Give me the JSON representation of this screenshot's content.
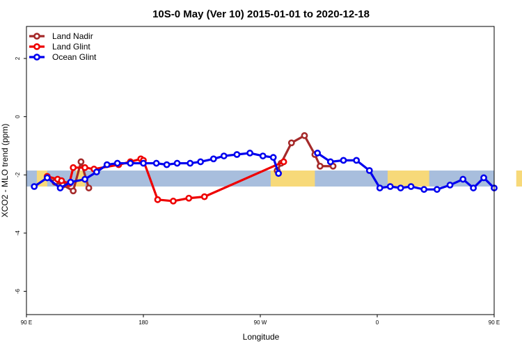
{
  "chart_data": {
    "type": "line",
    "title": "10S-0 May (Ver 10)   2015-01-01 to 2020-12-18",
    "xlabel": "Longitude",
    "ylabel": "XCO2 - MLO trend (ppm)",
    "xlim": [
      90,
      450
    ],
    "ylim": [
      -6.8,
      3.1
    ],
    "x_ticks": [
      90,
      180,
      270,
      360,
      450
    ],
    "x_tick_labels": [
      "90 E",
      "180",
      "90 W",
      "0",
      "90 E"
    ],
    "y_ticks": [
      2,
      0,
      -2,
      -4,
      -6
    ],
    "y_tick_labels": [
      "2",
      "0",
      "-2",
      "-4",
      "-6"
    ],
    "legend_position": "top-left",
    "map_band": {
      "lat_label": "10S-0",
      "value_range": [
        -2.4,
        -1.85
      ],
      "ocean_color": "#a8bedd",
      "land_color": "#f7d979",
      "land_segments": [
        [
          98,
          106
        ],
        [
          128,
          135
        ],
        [
          278,
          312
        ],
        [
          368,
          400
        ],
        [
          467,
          473
        ],
        [
          492,
          500
        ]
      ]
    },
    "series": [
      {
        "name": "Land Nadir",
        "color": "#a52a2a",
        "x": [
          106,
          112,
          118,
          126,
          132,
          138,
          283,
          286,
          294,
          304,
          312,
          316,
          326
        ],
        "y": [
          -2.1,
          -2.25,
          -2.35,
          -2.55,
          -1.55,
          -2.45,
          -1.85,
          -1.6,
          -0.9,
          -0.65,
          -1.3,
          -1.7,
          -1.7
        ],
        "segment_breaks": [
          6
        ]
      },
      {
        "name": "Land Glint",
        "color": "#ee0000",
        "x": [
          106,
          114,
          117,
          123,
          126,
          135,
          142,
          161,
          170,
          178,
          180,
          191,
          203,
          215,
          227,
          288
        ],
        "y": [
          -2.05,
          -2.15,
          -2.2,
          -2.3,
          -1.75,
          -1.75,
          -1.8,
          -1.65,
          -1.55,
          -1.45,
          -1.5,
          -2.85,
          -2.9,
          -2.8,
          -2.75,
          -1.55
        ],
        "segment_breaks": []
      },
      {
        "name": "Ocean Glint",
        "color": "#0000ee",
        "x": [
          96,
          106,
          116,
          124,
          135,
          144,
          152,
          160,
          170,
          180,
          190,
          198,
          206,
          216,
          224,
          234,
          242,
          252,
          262,
          272,
          280,
          284,
          314,
          324,
          334,
          344,
          354,
          362,
          370,
          378,
          386,
          396,
          406,
          416,
          426,
          434,
          442,
          450
        ],
        "y": [
          -2.4,
          -2.1,
          -2.45,
          -2.25,
          -2.15,
          -1.9,
          -1.65,
          -1.6,
          -1.6,
          -1.6,
          -1.6,
          -1.65,
          -1.6,
          -1.6,
          -1.55,
          -1.45,
          -1.35,
          -1.3,
          -1.25,
          -1.35,
          -1.4,
          -1.95,
          -1.25,
          -1.55,
          -1.5,
          -1.5,
          -1.85,
          -2.45,
          -2.4,
          -2.45,
          -2.4,
          -2.5,
          -2.5,
          -2.35,
          -2.15,
          -2.45,
          -2.1,
          -2.45
        ],
        "segment_breaks": [
          22
        ]
      }
    ]
  }
}
